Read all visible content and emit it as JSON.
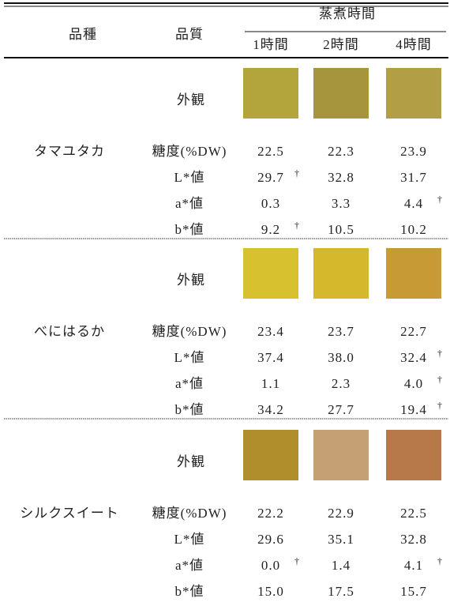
{
  "header": {
    "variety": "品種",
    "quality": "品質",
    "time": "蒸煮時間",
    "times": [
      "1時間",
      "2時間",
      "4時間"
    ]
  },
  "groups": [
    {
      "variety": "タマユタカ",
      "appearance": "外観",
      "rows": [
        {
          "label": "糖度(%DW)",
          "cells": [
            {
              "value": "22.5"
            },
            {
              "value": "22.3"
            },
            {
              "value": "23.9"
            }
          ]
        },
        {
          "label": "L*値",
          "cells": [
            {
              "value": "29.7",
              "mark": "†"
            },
            {
              "value": "32.8"
            },
            {
              "value": "31.7"
            }
          ]
        },
        {
          "label": "a*値",
          "cells": [
            {
              "value": "0.3"
            },
            {
              "value": "3.3"
            },
            {
              "value": "4.4",
              "mark": "†"
            }
          ]
        },
        {
          "label": "b*値",
          "cells": [
            {
              "value": "9.2",
              "mark": "†"
            },
            {
              "value": "10.5"
            },
            {
              "value": "10.2"
            }
          ]
        }
      ]
    },
    {
      "variety": "べにはるか",
      "appearance": "外観",
      "rows": [
        {
          "label": "糖度(%DW)",
          "cells": [
            {
              "value": "23.4"
            },
            {
              "value": "23.7"
            },
            {
              "value": "22.7"
            }
          ]
        },
        {
          "label": "L*値",
          "cells": [
            {
              "value": "37.4"
            },
            {
              "value": "38.0"
            },
            {
              "value": "32.4",
              "mark": "†"
            }
          ]
        },
        {
          "label": "a*値",
          "cells": [
            {
              "value": "1.1"
            },
            {
              "value": "2.3"
            },
            {
              "value": "4.0",
              "mark": "†"
            }
          ]
        },
        {
          "label": "b*値",
          "cells": [
            {
              "value": "34.2"
            },
            {
              "value": "27.7"
            },
            {
              "value": "19.4",
              "mark": "†"
            }
          ]
        }
      ]
    },
    {
      "variety": "シルクスイート",
      "appearance": "外観",
      "rows": [
        {
          "label": "糖度(%DW)",
          "cells": [
            {
              "value": "22.2"
            },
            {
              "value": "22.9"
            },
            {
              "value": "22.5"
            }
          ]
        },
        {
          "label": "L*値",
          "cells": [
            {
              "value": "29.6"
            },
            {
              "value": "35.1"
            },
            {
              "value": "32.8"
            }
          ]
        },
        {
          "label": "a*値",
          "cells": [
            {
              "value": "0.0",
              "mark": "†"
            },
            {
              "value": "1.4"
            },
            {
              "value": "4.1",
              "mark": "†"
            }
          ]
        },
        {
          "label": "b*値",
          "cells": [
            {
              "value": "15.0"
            },
            {
              "value": "17.5"
            },
            {
              "value": "15.7"
            }
          ]
        }
      ]
    }
  ]
}
